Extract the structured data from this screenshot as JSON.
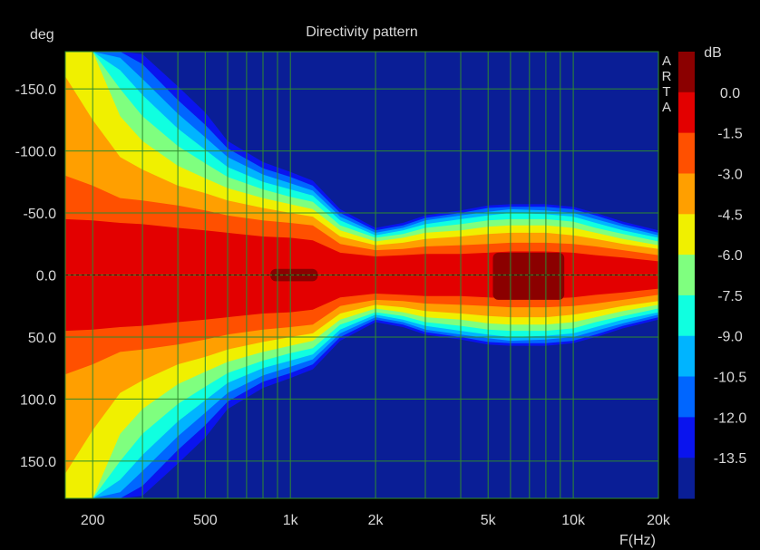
{
  "chart_data": {
    "type": "heatmap",
    "title": "Directivity pattern",
    "ylabel": "deg",
    "xlabel": "F(Hz)",
    "watermark": "ARTA",
    "x_scale": "log",
    "xlim": [
      160,
      20000
    ],
    "ylim": [
      -180,
      180
    ],
    "y_inverted": true,
    "x_ticks": [
      {
        "value": 200,
        "label": "200"
      },
      {
        "value": 500,
        "label": "500"
      },
      {
        "value": 1000,
        "label": "1k"
      },
      {
        "value": 2000,
        "label": "2k"
      },
      {
        "value": 5000,
        "label": "5k"
      },
      {
        "value": 10000,
        "label": "10k"
      },
      {
        "value": 20000,
        "label": "20k"
      }
    ],
    "y_ticks": [
      {
        "value": -150,
        "label": "-150.0"
      },
      {
        "value": -100,
        "label": "-100.0"
      },
      {
        "value": -50,
        "label": "-50.0"
      },
      {
        "value": 0,
        "label": "0.0"
      },
      {
        "value": 50,
        "label": "50.0"
      },
      {
        "value": 100,
        "label": "100.0"
      },
      {
        "value": 150,
        "label": "150.0"
      }
    ],
    "colorbar": {
      "unit": "dB",
      "levels": [
        "0.0",
        "-1.5",
        "-3.0",
        "-4.5",
        "-6.0",
        "-7.5",
        "-9.0",
        "-10.5",
        "-12.0",
        "-13.5"
      ],
      "colors": [
        "#8b0000",
        "#e30000",
        "#ff5000",
        "#ff9f00",
        "#f0f000",
        "#7fff7f",
        "#10ffe0",
        "#00b4ff",
        "#0066ff",
        "#0a14ee",
        "#0a1e96"
      ]
    },
    "grid": true,
    "contours_deg_per_band": {
      "description": "half-angle (deg) at which level drops below band threshold, per frequency",
      "freqs": [
        160,
        200,
        250,
        300,
        400,
        500,
        600,
        800,
        1000,
        1200,
        1500,
        2000,
        2500,
        3000,
        4000,
        5000,
        6000,
        8000,
        10000,
        12000,
        15000,
        20000
      ],
      "bands": {
        "-1.5": [
          45,
          44,
          42,
          41,
          38,
          36,
          34,
          31,
          30,
          28,
          18,
          15,
          16,
          17,
          17,
          18,
          19,
          19,
          18,
          16,
          14,
          11
        ],
        "-3.0": [
          80,
          72,
          62,
          60,
          56,
          52,
          48,
          44,
          42,
          40,
          25,
          20,
          21,
          23,
          24,
          25,
          26,
          26,
          25,
          23,
          20,
          16
        ],
        "-4.5": [
          160,
          125,
          95,
          85,
          72,
          66,
          60,
          54,
          50,
          47,
          31,
          24,
          26,
          29,
          31,
          33,
          34,
          34,
          32,
          29,
          25,
          21
        ],
        "-6.0": [
          180,
          180,
          128,
          108,
          88,
          78,
          70,
          62,
          57,
          53,
          36,
          27,
          30,
          34,
          36,
          39,
          40,
          40,
          38,
          34,
          29,
          24
        ],
        "-7.5": [
          180,
          180,
          150,
          128,
          104,
          90,
          79,
          69,
          63,
          59,
          40,
          30,
          33,
          38,
          41,
          44,
          45,
          45,
          43,
          38,
          33,
          27
        ],
        "-9.0": [
          180,
          180,
          165,
          145,
          118,
          101,
          87,
          75,
          69,
          64,
          44,
          32,
          36,
          41,
          45,
          48,
          50,
          49,
          47,
          42,
          36,
          30
        ],
        "-10.5": [
          180,
          180,
          175,
          158,
          130,
          111,
          95,
          81,
          74,
          68,
          47,
          34,
          38,
          44,
          48,
          51,
          53,
          52,
          50,
          45,
          39,
          32
        ],
        "-12.0": [
          180,
          180,
          180,
          170,
          141,
          121,
          102,
          86,
          79,
          72,
          50,
          36,
          40,
          46,
          50,
          54,
          55,
          55,
          53,
          48,
          41,
          34
        ],
        "-13.5": [
          180,
          180,
          180,
          178,
          152,
          131,
          108,
          91,
          83,
          76,
          53,
          38,
          42,
          48,
          52,
          56,
          57,
          57,
          55,
          50,
          43,
          36
        ]
      },
      "peak_regions": [
        {
          "f_start": 850,
          "f_end": 1250,
          "deg_min": -5,
          "deg_max": 5
        },
        {
          "f_start": 5200,
          "f_end": 9300,
          "deg_min": -18,
          "deg_max": 20
        }
      ]
    }
  }
}
